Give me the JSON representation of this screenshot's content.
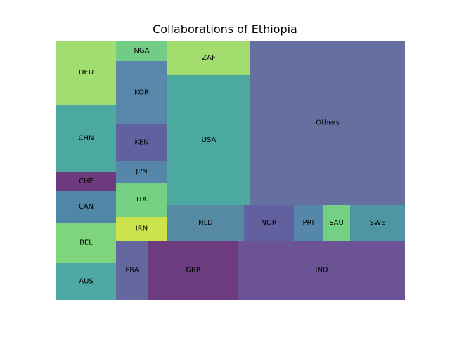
{
  "chart_data": {
    "type": "treemap",
    "title": "Collaborations of Ethiopia",
    "items": [
      {
        "label": "AUS",
        "value": 4.4,
        "color": "#4ea8a6"
      },
      {
        "label": "BEL",
        "value": 5.0,
        "color": "#7fd57d"
      },
      {
        "label": "CAN",
        "value": 3.8,
        "color": "#5087a9"
      },
      {
        "label": "CHE",
        "value": 2.4,
        "color": "#6c3a7d"
      },
      {
        "label": "CHN",
        "value": 8.2,
        "color": "#4ca99f"
      },
      {
        "label": "DEU",
        "value": 7.8,
        "color": "#a1dd70"
      },
      {
        "label": "NGA",
        "value": 1.8,
        "color": "#71cc85"
      },
      {
        "label": "KOR",
        "value": 5.5,
        "color": "#5887a9"
      },
      {
        "label": "KEN",
        "value": 3.2,
        "color": "#62619f"
      },
      {
        "label": "JPN",
        "value": 1.9,
        "color": "#5687aa"
      },
      {
        "label": "ITA",
        "value": 3.0,
        "color": "#74d184"
      },
      {
        "label": "IRN",
        "value": 2.1,
        "color": "#cde34b"
      },
      {
        "label": "FRA",
        "value": 3.5,
        "color": "#65679f"
      },
      {
        "label": "ZAF",
        "value": 5.2,
        "color": "#a3dd6e"
      },
      {
        "label": "USA",
        "value": 19.6,
        "color": "#4ba99f"
      },
      {
        "label": "GBR",
        "value": 9.9,
        "color": "#6c3c7e"
      },
      {
        "label": "NLD",
        "value": 5.1,
        "color": "#568aa2"
      },
      {
        "label": "NOR",
        "value": 3.3,
        "color": "#62609e"
      },
      {
        "label": "PRI",
        "value": 1.8,
        "color": "#5587aa"
      },
      {
        "label": "SAU",
        "value": 1.8,
        "color": "#74d184"
      },
      {
        "label": "SWE",
        "value": 3.6,
        "color": "#4f96a3"
      },
      {
        "label": "IND",
        "value": 21.2,
        "color": "#6b5395"
      },
      {
        "label": "Others",
        "value": 46.9,
        "color": "#6570a0"
      }
    ]
  }
}
